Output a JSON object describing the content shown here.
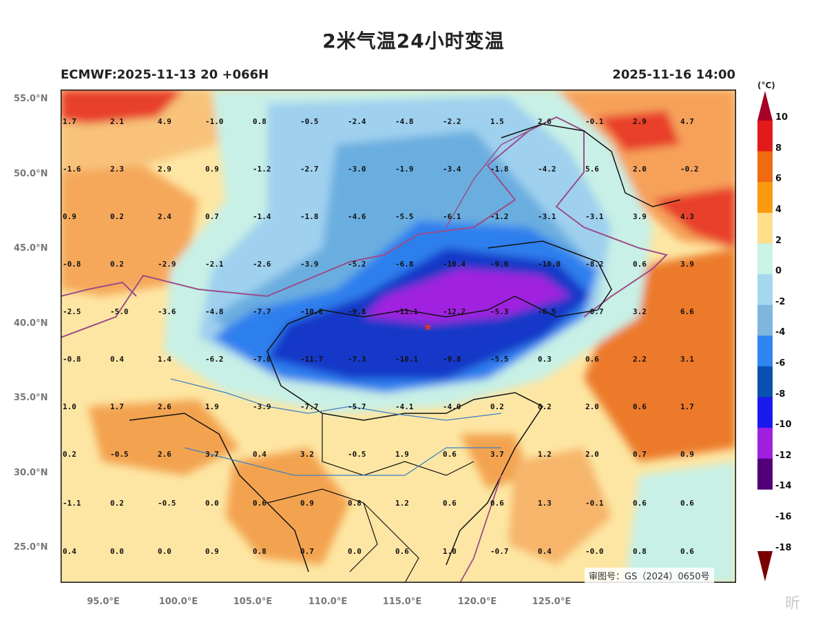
{
  "title": "2米气温24小时变温",
  "subtitle_left": "ECMWF:2025-11-13 20 +066H",
  "subtitle_right": "2025-11-16 14:00",
  "unit_label": "(°C)",
  "approval_text": "审图号：GS（2024）0650号",
  "watermark_text": "昕",
  "lat_labels": [
    "55.0°N",
    "50.0°N",
    "45.0°N",
    "40.0°N",
    "35.0°N",
    "30.0°N",
    "25.0°N"
  ],
  "lon_labels": [
    "95.0°E",
    "100.0°E",
    "105.0°E",
    "110.0°E",
    "115.0°E",
    "120.0°E",
    "125.0°E"
  ],
  "colorbar": {
    "ticks": [
      "10",
      "8",
      "6",
      "4",
      "2",
      "0",
      "-2",
      "-4",
      "-6",
      "-8",
      "-10",
      "-12",
      "-14",
      "-16",
      "-18"
    ],
    "colors": [
      "#a50026",
      "#e31a1c",
      "#ef6a10",
      "#f99a10",
      "#fdde8a",
      "#c8f4e8",
      "#a5d8f0",
      "#7eb6de",
      "#2f86f0",
      "#0b4fb0",
      "#1a1aee",
      "#a020e0",
      "#52007a",
      "#7a0000"
    ]
  },
  "grid_values": [
    [
      "1.7",
      "2.1",
      "4.9",
      "-1.0",
      "0.8",
      "-0.5",
      "-2.4",
      "-4.8",
      "-2.2",
      "1.5",
      "2.6",
      "-0.1",
      "2.9",
      "4.7"
    ],
    [
      "-1.6",
      "2.3",
      "2.9",
      "0.9",
      "-1.2",
      "-2.7",
      "-3.0",
      "-1.9",
      "-3.4",
      "-1.8",
      "-4.2",
      "5.6",
      "2.0",
      "-0.2"
    ],
    [
      "0.9",
      "0.2",
      "2.4",
      "0.7",
      "-1.4",
      "-1.8",
      "-4.6",
      "-5.5",
      "-6.1",
      "-1.2",
      "-3.1",
      "-3.1",
      "3.9",
      "4.3"
    ],
    [
      "-0.8",
      "0.2",
      "-2.9",
      "-2.1",
      "-2.6",
      "-3.9",
      "-5.2",
      "-6.8",
      "-10.4",
      "-9.6",
      "-10.0",
      "-8.2",
      "0.6",
      "3.9"
    ],
    [
      "-2.5",
      "-5.0",
      "-3.6",
      "-4.8",
      "-7.7",
      "-10.8",
      "-9.8",
      "-11.1",
      "-12.2",
      "-5.3",
      "-6.5",
      "-0.7",
      "3.2",
      "6.6"
    ],
    [
      "-0.8",
      "0.4",
      "1.4",
      "-6.2",
      "-7.8",
      "-11.7",
      "-7.3",
      "-10.1",
      "-9.8",
      "-5.5",
      "0.3",
      "0.6",
      "2.2",
      "3.1"
    ],
    [
      "1.0",
      "1.7",
      "2.6",
      "1.9",
      "-3.9",
      "-7.7",
      "-5.7",
      "-4.1",
      "-4.0",
      "0.2",
      "0.2",
      "2.0",
      "0.6",
      "1.7"
    ],
    [
      "0.2",
      "-0.5",
      "2.6",
      "3.7",
      "0.4",
      "3.2",
      "-0.5",
      "1.9",
      "0.6",
      "3.7",
      "1.2",
      "2.0",
      "0.7",
      "0.9"
    ],
    [
      "-1.1",
      "0.2",
      "-0.5",
      "0.0",
      "0.6",
      "0.9",
      "0.8",
      "1.2",
      "0.6",
      "0.6",
      "1.3",
      "-0.1",
      "0.6",
      "0.6"
    ],
    [
      "0.4",
      "0.0",
      "0.0",
      "0.9",
      "0.8",
      "0.7",
      "0.0",
      "0.6",
      "1.0",
      "-0.7",
      "0.4",
      "-0.0",
      "0.8",
      "0.6"
    ]
  ]
}
